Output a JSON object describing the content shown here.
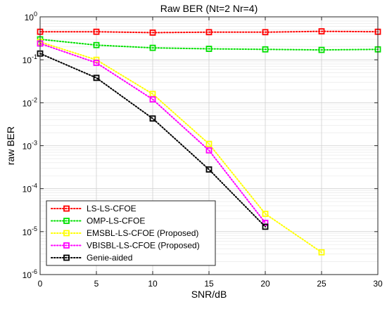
{
  "chart_data": {
    "type": "line",
    "title": "Raw BER (Nt=2 Nr=4)",
    "xlabel": "SNR/dB",
    "ylabel": "raw BER",
    "xlim": [
      0,
      30
    ],
    "ylim": [
      1e-06,
      1
    ],
    "yscale": "log",
    "grid": true,
    "minor_grid": true,
    "legend_position": "bottom-left",
    "x_ticks": [
      0,
      5,
      10,
      15,
      20,
      25,
      30
    ],
    "x_tick_labels": [
      "0",
      "5",
      "10",
      "15",
      "20",
      "25",
      "30"
    ],
    "y_ticks": [
      1e-06,
      1e-05,
      0.0001,
      0.001,
      0.01,
      0.1,
      1
    ],
    "y_tick_labels": [
      {
        "base": "10",
        "exp": "-6"
      },
      {
        "base": "10",
        "exp": "-5"
      },
      {
        "base": "10",
        "exp": "-4"
      },
      {
        "base": "10",
        "exp": "-3"
      },
      {
        "base": "10",
        "exp": "-2"
      },
      {
        "base": "10",
        "exp": "-1"
      },
      {
        "base": "10",
        "exp": "0"
      }
    ],
    "series": [
      {
        "name": "LS-LS-CFOE",
        "color": "#ff0000",
        "line_style": "dotted",
        "marker": "square",
        "x": [
          0,
          5,
          10,
          15,
          20,
          25,
          30
        ],
        "y": [
          0.45,
          0.45,
          0.43,
          0.44,
          0.44,
          0.46,
          0.45
        ]
      },
      {
        "name": "OMP-LS-CFOE",
        "color": "#00e000",
        "line_style": "dotted",
        "marker": "square",
        "x": [
          0,
          5,
          10,
          15,
          20,
          25,
          30
        ],
        "y": [
          0.3,
          0.22,
          0.19,
          0.18,
          0.175,
          0.17,
          0.175
        ]
      },
      {
        "name": "EMSBL-LS-CFOE (Proposed)",
        "color": "#ffff00",
        "line_style": "dotted",
        "marker": "square",
        "x": [
          0,
          5,
          10,
          15,
          20,
          25
        ],
        "y": [
          0.26,
          0.1,
          0.016,
          0.0011,
          2.6e-05,
          3.3e-06
        ]
      },
      {
        "name": "VBISBL-LS-CFOE (Proposed)",
        "color": "#ff00ff",
        "line_style": "dotted",
        "marker": "square",
        "x": [
          0,
          5,
          10,
          15,
          20
        ],
        "y": [
          0.24,
          0.085,
          0.012,
          0.00078,
          1.6e-05
        ]
      },
      {
        "name": "Genie-aided",
        "color": "#000000",
        "line_style": "dotted",
        "marker": "square",
        "x": [
          0,
          5,
          10,
          15,
          20
        ],
        "y": [
          0.14,
          0.038,
          0.0043,
          0.00028,
          1.3e-05
        ]
      }
    ]
  }
}
